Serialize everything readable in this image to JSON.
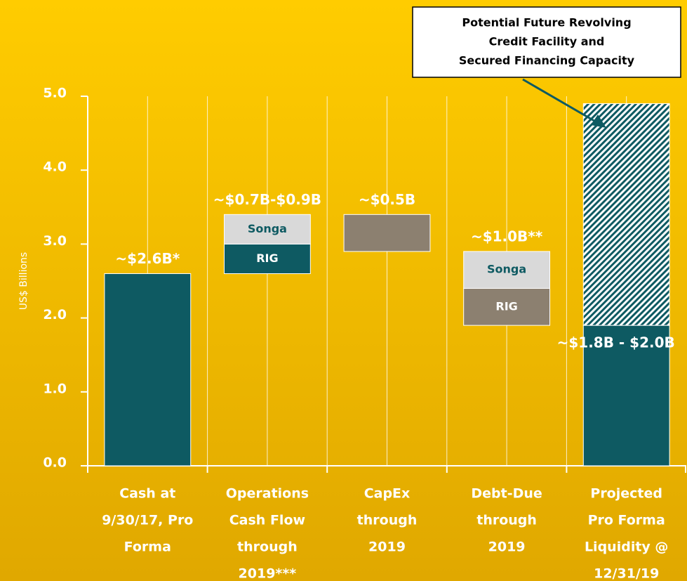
{
  "chart_data": {
    "type": "waterfall",
    "y_label": "US$ Billions",
    "ylim": [
      0,
      5
    ],
    "yticks": [
      {
        "value": 0,
        "label": "0.0"
      },
      {
        "value": 1,
        "label": "1.0"
      },
      {
        "value": 2,
        "label": "2.0"
      },
      {
        "value": 3,
        "label": "3.0"
      },
      {
        "value": 4,
        "label": "4.0"
      },
      {
        "value": 5,
        "label": "5.0"
      }
    ],
    "annotation": [
      "Potential Future Revolving",
      "Credit Facility and",
      "Secured Financing Capacity"
    ],
    "bars": [
      {
        "category": [
          "Cash at",
          "9/30/17, Pro",
          "Forma"
        ],
        "label": "~$2.6B*",
        "segments": [
          {
            "value": 2.6,
            "color": "#0e5a62"
          }
        ]
      },
      {
        "category": [
          "Operations",
          "Cash Flow",
          "through",
          "2019***"
        ],
        "label": "~$0.7B-$0.9B",
        "segments": [
          {
            "name": "RIG",
            "value": 0.4,
            "color": "#0e5a62"
          },
          {
            "name": "Songa",
            "value": 0.4,
            "color": "#d9d9d9"
          }
        ]
      },
      {
        "category": [
          "CapEx",
          "through",
          "2019"
        ],
        "label": "~$0.5B",
        "segments": [
          {
            "value": -0.5,
            "color": "#8c8070"
          }
        ]
      },
      {
        "category": [
          "Debt-Due",
          "through",
          "2019"
        ],
        "label": "~$1.0B**",
        "segments": [
          {
            "name": "Songa",
            "value": -0.5,
            "color": "#d9d9d9"
          },
          {
            "name": "RIG",
            "value": -0.5,
            "color": "#8c8070"
          }
        ]
      },
      {
        "category": [
          "Projected",
          "Pro Forma",
          "Liquidity @",
          "12/31/19"
        ],
        "label": "~$1.8B - $2.0B",
        "total": true,
        "segments": [
          {
            "value": 1.9,
            "color": "#0e5a62"
          },
          {
            "value": 3.0,
            "color": "#0e5a62",
            "pattern": "hatch"
          }
        ]
      }
    ]
  }
}
